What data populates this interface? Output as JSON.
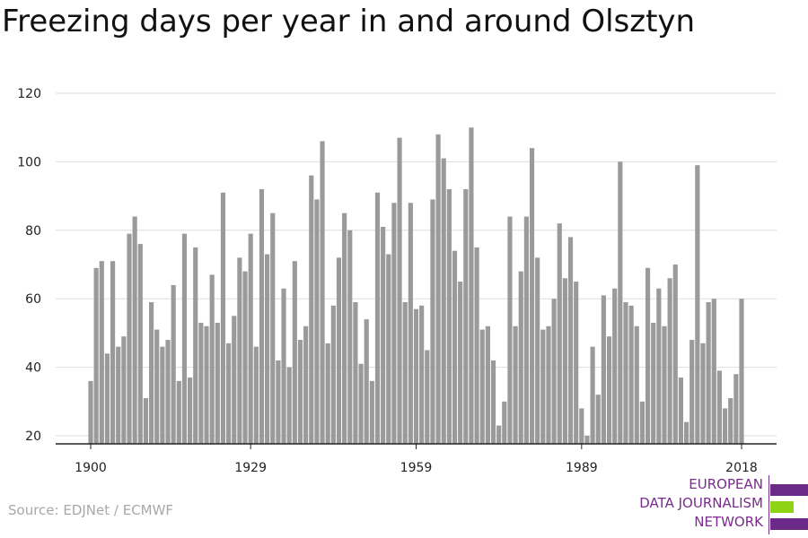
{
  "title": "Freezing days per year in and around Olsztyn",
  "source": "Source: EDJNet / ECMWF",
  "logo": {
    "lines": [
      "EUROPEAN",
      "DATA JOURNALISM",
      "NETWORK"
    ],
    "purple": "#6b2a87",
    "green": "#8ed414"
  },
  "colors": {
    "bar": "#9a9a9a",
    "grid": "#dddddd",
    "axis": "#222222",
    "text": "#222222"
  },
  "chart_data": {
    "type": "bar",
    "title": "Freezing days per year in and around Olsztyn",
    "xlabel": "",
    "ylabel": "",
    "x": [
      1900,
      1901,
      1902,
      1903,
      1904,
      1905,
      1906,
      1907,
      1908,
      1909,
      1910,
      1911,
      1912,
      1913,
      1914,
      1915,
      1916,
      1917,
      1918,
      1919,
      1920,
      1921,
      1922,
      1923,
      1924,
      1925,
      1926,
      1927,
      1928,
      1929,
      1930,
      1931,
      1932,
      1933,
      1934,
      1935,
      1936,
      1937,
      1938,
      1939,
      1940,
      1941,
      1942,
      1943,
      1944,
      1945,
      1946,
      1947,
      1948,
      1949,
      1950,
      1951,
      1952,
      1953,
      1954,
      1955,
      1956,
      1957,
      1958,
      1959,
      1960,
      1961,
      1962,
      1963,
      1964,
      1965,
      1966,
      1967,
      1968,
      1969,
      1970,
      1971,
      1972,
      1973,
      1974,
      1975,
      1976,
      1977,
      1978,
      1979,
      1980,
      1981,
      1982,
      1983,
      1984,
      1985,
      1986,
      1987,
      1988,
      1989,
      1990,
      1991,
      1992,
      1993,
      1994,
      1995,
      1996,
      1997,
      1998,
      1999,
      2000,
      2001,
      2002,
      2003,
      2004,
      2005,
      2006,
      2007,
      2008,
      2009,
      2010,
      2011,
      2012,
      2013,
      2014,
      2015,
      2016,
      2017,
      2018
    ],
    "values": [
      36,
      69,
      71,
      44,
      71,
      46,
      49,
      79,
      84,
      76,
      31,
      59,
      51,
      46,
      48,
      64,
      36,
      79,
      37,
      75,
      53,
      52,
      67,
      53,
      91,
      47,
      55,
      72,
      68,
      79,
      46,
      92,
      73,
      85,
      42,
      63,
      40,
      71,
      48,
      52,
      96,
      89,
      106,
      47,
      58,
      72,
      85,
      80,
      59,
      41,
      54,
      36,
      91,
      81,
      73,
      88,
      107,
      59,
      88,
      57,
      58,
      45,
      89,
      108,
      101,
      92,
      74,
      65,
      92,
      110,
      75,
      51,
      52,
      42,
      23,
      30,
      84,
      52,
      68,
      84,
      104,
      72,
      51,
      52,
      60,
      82,
      66,
      78,
      65,
      28,
      20,
      46,
      32,
      61,
      49,
      63,
      100,
      59,
      58,
      52,
      30,
      69,
      53,
      63,
      52,
      66,
      70,
      37,
      24,
      48,
      99,
      47,
      59,
      60,
      39,
      28,
      31,
      38,
      60
    ],
    "xticks": [
      1900,
      1929,
      1959,
      1989,
      2018
    ],
    "yticks": [
      20,
      40,
      60,
      80,
      100,
      120
    ],
    "ylim": [
      20,
      120
    ],
    "grid": true
  }
}
